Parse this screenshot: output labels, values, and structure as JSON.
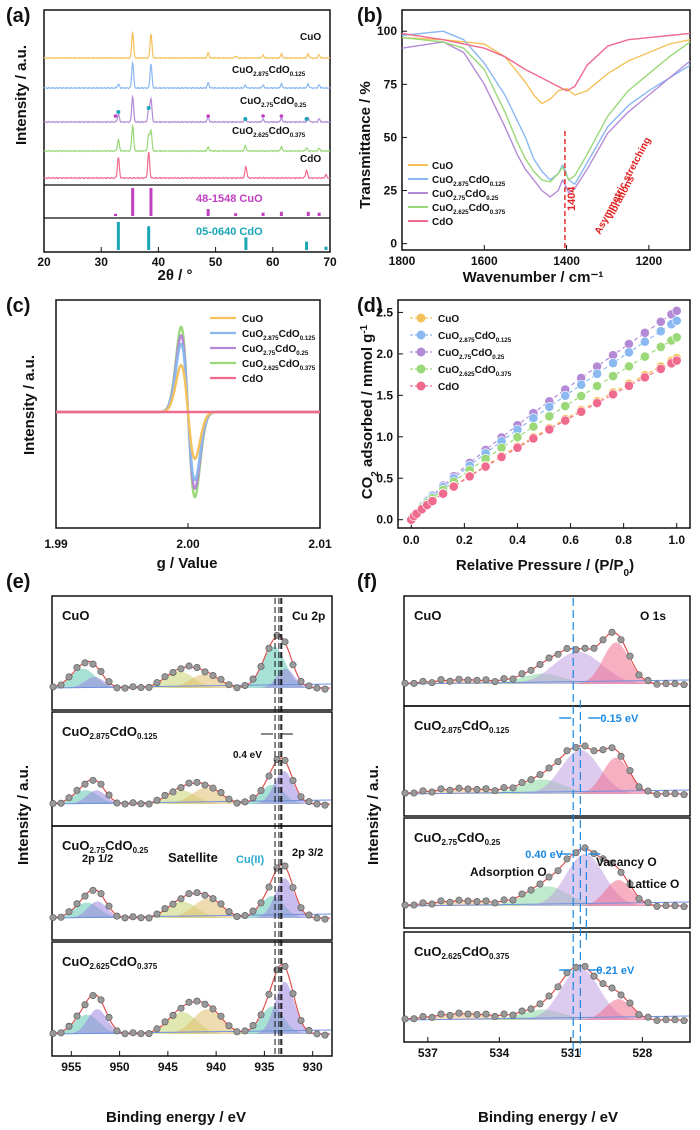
{
  "colors": {
    "CuO": "#f5c15a",
    "CuO2.875CdO0.125": "#8ab8f0",
    "CuO2.75CdO0.25": "#b48ad6",
    "CuO2.625CdO0.375": "#9ad878",
    "CdO": "#f06a8e",
    "ref_cuo": "#c040c0",
    "ref_cdo": "#1aa6b7",
    "marker": "#e02020",
    "shift": "#1a88e0"
  },
  "chart_data": [
    {
      "panel": "(a)",
      "type": "line",
      "xlabel": "2θ / °",
      "ylabel": "Intensity / a.u.",
      "xlim": [
        20,
        70
      ],
      "xticks": [
        20,
        30,
        40,
        50,
        60,
        70
      ],
      "series": [
        {
          "name": "CuO",
          "peaks": [
            [
              35.5,
              1.0
            ],
            [
              38.7,
              0.95
            ],
            [
              48.7,
              0.2
            ],
            [
              53.5,
              0.08
            ],
            [
              58.3,
              0.1
            ],
            [
              61.5,
              0.15
            ],
            [
              66.2,
              0.15
            ],
            [
              68.1,
              0.12
            ]
          ]
        },
        {
          "name": "CuO2.875CdO0.125",
          "peaks": [
            [
              33.0,
              0.15
            ],
            [
              35.5,
              1.0
            ],
            [
              38.7,
              0.95
            ],
            [
              48.7,
              0.2
            ],
            [
              55.2,
              0.1
            ],
            [
              58.3,
              0.1
            ],
            [
              61.5,
              0.15
            ],
            [
              66.2,
              0.15
            ],
            [
              68.1,
              0.12
            ]
          ]
        },
        {
          "name": "CuO2.75CdO0.25",
          "peaks": [
            [
              33.0,
              0.3
            ],
            [
              35.5,
              1.0
            ],
            [
              38.3,
              0.5
            ],
            [
              38.7,
              0.9
            ],
            [
              48.7,
              0.2
            ],
            [
              55.2,
              0.15
            ],
            [
              58.3,
              0.1
            ],
            [
              61.5,
              0.15
            ],
            [
              66.2,
              0.15
            ],
            [
              68.1,
              0.12
            ]
          ]
        },
        {
          "name": "CuO2.625CdO0.375",
          "peaks": [
            [
              33.0,
              0.45
            ],
            [
              35.5,
              1.0
            ],
            [
              38.3,
              0.6
            ],
            [
              38.7,
              0.8
            ],
            [
              48.7,
              0.15
            ],
            [
              55.2,
              0.2
            ],
            [
              61.5,
              0.15
            ],
            [
              65.9,
              0.12
            ],
            [
              68.1,
              0.1
            ]
          ]
        },
        {
          "name": "CdO",
          "peaks": [
            [
              33.0,
              0.8
            ],
            [
              38.3,
              1.0
            ],
            [
              55.3,
              0.45
            ],
            [
              65.9,
              0.3
            ],
            [
              69.3,
              0.12
            ]
          ]
        }
      ],
      "references": [
        {
          "name": "48-1548 CuO",
          "sticks": [
            [
              32.5,
              0.08
            ],
            [
              35.5,
              1.0
            ],
            [
              38.7,
              1.0
            ],
            [
              48.7,
              0.25
            ],
            [
              53.5,
              0.1
            ],
            [
              58.3,
              0.12
            ],
            [
              61.5,
              0.15
            ],
            [
              66.2,
              0.15
            ],
            [
              68.1,
              0.12
            ]
          ]
        },
        {
          "name": "05-0640 CdO",
          "sticks": [
            [
              33.0,
              1.0
            ],
            [
              38.3,
              0.85
            ],
            [
              55.3,
              0.45
            ],
            [
              65.9,
              0.3
            ],
            [
              69.3,
              0.12
            ]
          ]
        }
      ]
    },
    {
      "panel": "(b)",
      "type": "line",
      "xlabel": "Wavenumber / cm⁻¹",
      "ylabel": "Transmittance / %",
      "xlim": [
        1800,
        1100
      ],
      "ylim": [
        -3,
        110
      ],
      "xticks": [
        1800,
        1600,
        1400,
        1200
      ],
      "yticks": [
        0,
        25,
        50,
        75,
        100
      ],
      "annotation_value": "1404",
      "annotation_text": [
        "Asymmetric stretching",
        "vibrations"
      ],
      "series": [
        {
          "name": "CuO",
          "x": [
            1800,
            1700,
            1600,
            1550,
            1500,
            1480,
            1460,
            1440,
            1420,
            1400,
            1380,
            1350,
            1300,
            1250,
            1200,
            1150,
            1100
          ],
          "y": [
            97,
            96,
            94,
            88,
            76,
            70,
            66,
            68,
            72,
            73,
            70,
            72,
            80,
            86,
            90,
            94,
            96
          ]
        },
        {
          "name": "CuO2.875CdO0.125",
          "x": [
            1800,
            1700,
            1650,
            1600,
            1550,
            1500,
            1480,
            1460,
            1440,
            1420,
            1410,
            1404,
            1395,
            1380,
            1350,
            1300,
            1250,
            1200,
            1150,
            1100
          ],
          "y": [
            98,
            100,
            96,
            85,
            70,
            50,
            40,
            34,
            30,
            33,
            37,
            35,
            30,
            28,
            38,
            55,
            65,
            72,
            78,
            84
          ]
        },
        {
          "name": "CuO2.75CdO0.25",
          "x": [
            1800,
            1700,
            1650,
            1600,
            1550,
            1520,
            1500,
            1480,
            1460,
            1440,
            1420,
            1410,
            1404,
            1395,
            1380,
            1350,
            1300,
            1250,
            1200,
            1150,
            1100
          ],
          "y": [
            92,
            95,
            90,
            75,
            55,
            42,
            35,
            30,
            25,
            22,
            25,
            30,
            28,
            24,
            26,
            35,
            52,
            62,
            70,
            78,
            86
          ]
        },
        {
          "name": "CuO2.625CdO0.375",
          "x": [
            1800,
            1700,
            1650,
            1600,
            1550,
            1520,
            1500,
            1480,
            1460,
            1440,
            1420,
            1410,
            1404,
            1395,
            1380,
            1350,
            1300,
            1250,
            1200,
            1150,
            1100
          ],
          "y": [
            97,
            95,
            92,
            82,
            62,
            48,
            40,
            34,
            30,
            29,
            33,
            36,
            34,
            30,
            32,
            42,
            60,
            72,
            80,
            88,
            95
          ]
        },
        {
          "name": "CdO",
          "x": [
            1800,
            1700,
            1600,
            1550,
            1500,
            1460,
            1440,
            1420,
            1400,
            1380,
            1350,
            1300,
            1250,
            1200,
            1150,
            1100
          ],
          "y": [
            99,
            96,
            92,
            88,
            82,
            78,
            76,
            74,
            72,
            74,
            84,
            93,
            96,
            97,
            98,
            99
          ]
        }
      ]
    },
    {
      "panel": "(c)",
      "type": "line",
      "xlabel": "g / Value",
      "ylabel": "Intensity / a.u.",
      "xlim": [
        1.99,
        2.01
      ],
      "xticks": [
        "1.99",
        "2.00",
        "2.01"
      ],
      "center": 2.0,
      "series": [
        {
          "name": "CuO",
          "amplitude": 0.55
        },
        {
          "name": "CuO2.875CdO0.125",
          "amplitude": 0.8
        },
        {
          "name": "CuO2.75CdO0.25",
          "amplitude": 0.9
        },
        {
          "name": "CuO2.625CdO0.375",
          "amplitude": 1.0
        },
        {
          "name": "CdO",
          "amplitude": 0.0
        }
      ]
    },
    {
      "panel": "(d)",
      "type": "scatter",
      "xlabel": "Relative Pressure / (P/P0)",
      "ylabel": "CO2 adsorbed / mmol g-1",
      "xlim": [
        -0.05,
        1.05
      ],
      "ylim": [
        -0.1,
        2.65
      ],
      "xticks": [
        "0.0",
        "0.2",
        "0.4",
        "0.6",
        "0.8",
        "1.0"
      ],
      "yticks": [
        "0.0",
        "0.5",
        "1.0",
        "1.5",
        "2.0",
        "2.5"
      ],
      "x": [
        0.0,
        0.01,
        0.02,
        0.04,
        0.06,
        0.08,
        0.12,
        0.16,
        0.22,
        0.28,
        0.34,
        0.4,
        0.46,
        0.52,
        0.58,
        0.64,
        0.7,
        0.76,
        0.82,
        0.88,
        0.94,
        0.98,
        1.0
      ],
      "series": [
        {
          "name": "CuO",
          "ymax": 1.95
        },
        {
          "name": "CuO2.875CdO0.125",
          "ymax": 2.4
        },
        {
          "name": "CuO2.75CdO0.25",
          "ymax": 2.52
        },
        {
          "name": "CuO2.625CdO0.375",
          "ymax": 2.2
        },
        {
          "name": "CdO",
          "ymax": 1.92
        }
      ]
    },
    {
      "panel": "(e)",
      "type": "area",
      "xlabel": "Binding energy / eV",
      "ylabel": "Intensity / a.u.",
      "xlim": [
        957,
        928
      ],
      "xticks": [
        955,
        950,
        945,
        940,
        935,
        930
      ],
      "core_level": "Cu 2p",
      "shift_label": "0.4 eV",
      "peak_labels": {
        "p12": "2p 1/2",
        "sat": "Satellite",
        "cu": "Cu(II)",
        "p32": "2p 3/2"
      },
      "subpanels": [
        {
          "sample": "CuO",
          "main_peak": 933.9,
          "peaks": [
            [
              953.8,
              0.35,
              1.3
            ],
            [
              952.6,
              0.2,
              1.0
            ],
            [
              943.8,
              0.3,
              1.5
            ],
            [
              941.2,
              0.25,
              1.5
            ],
            [
              934.0,
              0.75,
              1.2
            ],
            [
              932.8,
              0.35,
              0.9
            ]
          ]
        },
        {
          "sample": "CuO2.875CdO0.125",
          "main_peak": 933.5,
          "peaks": [
            [
              953.5,
              0.25,
              1.3
            ],
            [
              952.4,
              0.25,
              1.0
            ],
            [
              943.6,
              0.25,
              1.5
            ],
            [
              941.0,
              0.3,
              1.5
            ],
            [
              934.2,
              0.35,
              1.2
            ],
            [
              933.0,
              0.6,
              1.0
            ]
          ]
        },
        {
          "sample": "CuO2.75CdO0.25",
          "main_peak": 933.3,
          "peaks": [
            [
              953.4,
              0.28,
              1.3
            ],
            [
              952.3,
              0.3,
              1.0
            ],
            [
              943.5,
              0.3,
              1.5
            ],
            [
              940.9,
              0.35,
              1.5
            ],
            [
              934.2,
              0.4,
              1.2
            ],
            [
              932.9,
              0.72,
              1.0
            ]
          ]
        },
        {
          "sample": "CuO2.625CdO0.375",
          "main_peak": 933.2,
          "peaks": [
            [
              953.4,
              0.35,
              1.3
            ],
            [
              952.3,
              0.45,
              1.0
            ],
            [
              943.5,
              0.4,
              1.5
            ],
            [
              940.9,
              0.45,
              1.5
            ],
            [
              934.2,
              0.5,
              1.2
            ],
            [
              932.9,
              0.95,
              1.0
            ]
          ]
        }
      ]
    },
    {
      "panel": "(f)",
      "type": "area",
      "xlabel": "Binding energy / eV",
      "ylabel": "Intensity / a.u.",
      "xlim": [
        538,
        526
      ],
      "xticks": [
        537,
        534,
        531,
        528
      ],
      "core_level": "O 1s",
      "component_labels": [
        "Adsorption O",
        "Vacancy O",
        "Lattice O"
      ],
      "subpanels": [
        {
          "sample": "CuO",
          "shift": "",
          "peaks": [
            [
              535.5,
              0.08,
              1.3
            ],
            [
              532.2,
              0.2,
              0.9
            ],
            [
              530.7,
              0.62,
              1.0
            ],
            [
              529.1,
              0.8,
              0.55
            ]
          ]
        },
        {
          "sample": "CuO2.875CdO0.125",
          "shift": "0.15 eV",
          "peaks": [
            [
              535.5,
              0.1,
              1.3
            ],
            [
              532.2,
              0.28,
              0.9
            ],
            [
              530.6,
              0.85,
              0.8
            ],
            [
              529.1,
              0.7,
              0.55
            ]
          ]
        },
        {
          "sample": "CuO2.75CdO0.25",
          "shift": "0.40 eV",
          "peaks": [
            [
              535.5,
              0.1,
              1.3
            ],
            [
              532.0,
              0.38,
              0.9
            ],
            [
              530.4,
              1.0,
              0.8
            ],
            [
              529.0,
              0.5,
              0.55
            ]
          ]
        },
        {
          "sample": "CuO2.625CdO0.375",
          "shift": "0.21 eV",
          "peaks": [
            [
              535.5,
              0.12,
              1.3
            ],
            [
              532.2,
              0.2,
              0.9
            ],
            [
              530.6,
              1.0,
              0.8
            ],
            [
              529.0,
              0.4,
              0.55
            ]
          ]
        }
      ]
    }
  ]
}
